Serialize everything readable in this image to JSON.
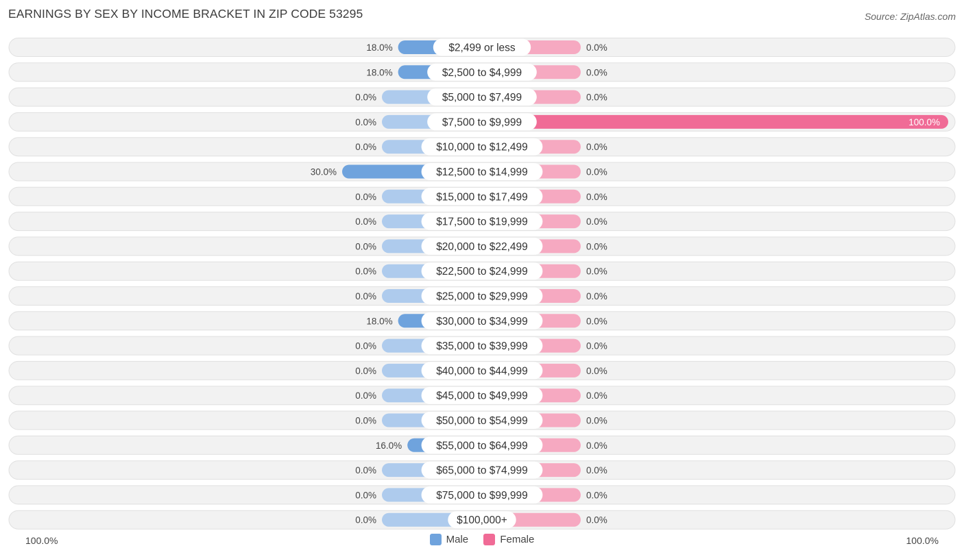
{
  "header": {
    "title": "EARNINGS BY SEX BY INCOME BRACKET IN ZIP CODE 53295",
    "source": "Source: ZipAtlas.com"
  },
  "colors": {
    "male_bar": "#6fa3dd",
    "male_bar_light": "#aecbed",
    "female_bar": "#f06b96",
    "female_bar_light": "#f6a9c1",
    "row_bg": "#f2f2f2",
    "row_border": "#e0e0e0"
  },
  "axis": {
    "left_label": "100.0%",
    "right_label": "100.0%"
  },
  "legend": [
    {
      "label": "Male",
      "color": "#6fa3dd"
    },
    {
      "label": "Female",
      "color": "#f06b96"
    }
  ],
  "chart_data": {
    "type": "bar",
    "orientation": "horizontal-diverging",
    "title": "EARNINGS BY SEX BY INCOME BRACKET IN ZIP CODE 53295",
    "xlim": [
      -100,
      100
    ],
    "categories": [
      "$2,499 or less",
      "$2,500 to $4,999",
      "$5,000 to $7,499",
      "$7,500 to $9,999",
      "$10,000 to $12,499",
      "$12,500 to $14,999",
      "$15,000 to $17,499",
      "$17,500 to $19,999",
      "$20,000 to $22,499",
      "$22,500 to $24,999",
      "$25,000 to $29,999",
      "$30,000 to $34,999",
      "$35,000 to $39,999",
      "$40,000 to $44,999",
      "$45,000 to $49,999",
      "$50,000 to $54,999",
      "$55,000 to $64,999",
      "$65,000 to $74,999",
      "$75,000 to $99,999",
      "$100,000+"
    ],
    "series": [
      {
        "name": "Male",
        "values": [
          18.0,
          18.0,
          0.0,
          0.0,
          0.0,
          30.0,
          0.0,
          0.0,
          0.0,
          0.0,
          0.0,
          18.0,
          0.0,
          0.0,
          0.0,
          0.0,
          16.0,
          0.0,
          0.0,
          0.0
        ],
        "labels": [
          "18.0%",
          "18.0%",
          "0.0%",
          "0.0%",
          "0.0%",
          "30.0%",
          "0.0%",
          "0.0%",
          "0.0%",
          "0.0%",
          "0.0%",
          "18.0%",
          "0.0%",
          "0.0%",
          "0.0%",
          "0.0%",
          "16.0%",
          "0.0%",
          "0.0%",
          "0.0%"
        ]
      },
      {
        "name": "Female",
        "values": [
          0.0,
          0.0,
          0.0,
          100.0,
          0.0,
          0.0,
          0.0,
          0.0,
          0.0,
          0.0,
          0.0,
          0.0,
          0.0,
          0.0,
          0.0,
          0.0,
          0.0,
          0.0,
          0.0,
          0.0
        ],
        "labels": [
          "0.0%",
          "0.0%",
          "0.0%",
          "100.0%",
          "0.0%",
          "0.0%",
          "0.0%",
          "0.0%",
          "0.0%",
          "0.0%",
          "0.0%",
          "0.0%",
          "0.0%",
          "0.0%",
          "0.0%",
          "0.0%",
          "0.0%",
          "0.0%",
          "0.0%",
          "0.0%"
        ]
      }
    ]
  }
}
